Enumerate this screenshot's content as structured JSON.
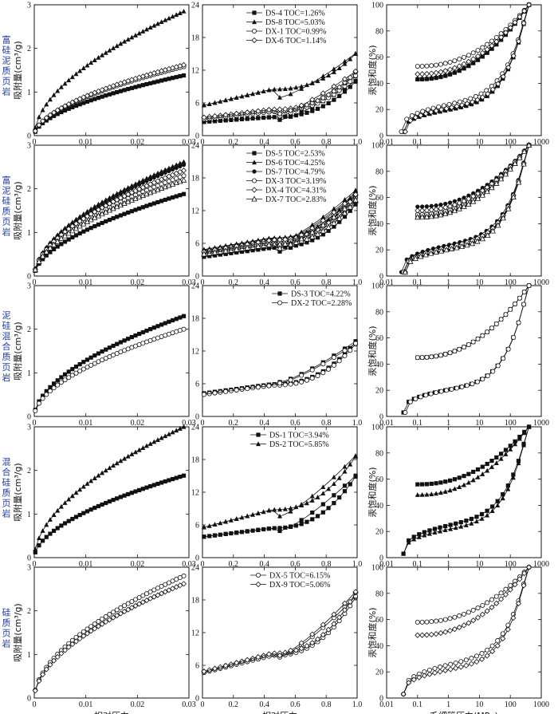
{
  "chart_data": {
    "type": "line",
    "x_titles": [
      "相对压力",
      "相对压力",
      "毛细管压力(MPa)"
    ],
    "col1": {
      "ylabel": "吸附量(cm³/g)",
      "xlim": [
        0,
        0.03
      ],
      "ylim": [
        0,
        3
      ],
      "xticks": [
        "0",
        "0.01",
        "0.02",
        "0.03"
      ],
      "yticks": [
        "0",
        "1",
        "2",
        "3"
      ]
    },
    "col2": {
      "xlim": [
        0,
        1
      ],
      "ylim": [
        0,
        24
      ],
      "xticks": [
        "0",
        "0.2",
        "0.4",
        "0.6",
        "0.8",
        "1.0"
      ],
      "yticks": [
        "0",
        "6",
        "12",
        "18",
        "24"
      ]
    },
    "col3": {
      "ylabel": "汞饱和度(%)",
      "xscale": "log",
      "xlim": [
        0.01,
        1000
      ],
      "ylim": [
        0,
        100
      ],
      "xticks": [
        "0.01",
        "0.1",
        "1",
        "10",
        "100",
        "1000"
      ],
      "yticks": [
        "0",
        "20",
        "40",
        "60",
        "80",
        "100"
      ]
    },
    "rows": [
      {
        "label": "富硅泥质页岩",
        "legend_pos": "top-left",
        "series": [
          {
            "name": "DS-4 TOC=1.26%",
            "marker": "square",
            "ads1": 1.38,
            "s2": [
              2.5,
              10.2,
              2.9,
              3.4
            ],
            "s3": [
              0.035,
              43,
              70
            ]
          },
          {
            "name": "DS-8 TOC=5.03%",
            "marker": "triangle",
            "ads1": 2.85,
            "s2": [
              5.5,
              15.3,
              7.0,
              8.5
            ],
            "s3": [
              0.035,
              44,
              80
            ]
          },
          {
            "name": "DX-1 TOC=0.99%",
            "marker": "circle",
            "ads1": 1.58,
            "s2": [
              3.0,
              11.2,
              3.6,
              4.4
            ],
            "s3": [
              0.03,
              53,
              120
            ]
          },
          {
            "name": "DX-6 TOC=1.14%",
            "marker": "diamond",
            "ads1": 1.62,
            "s2": [
              3.3,
              12.0,
              4.0,
              4.8
            ],
            "s3": [
              0.04,
              47,
              90
            ]
          }
        ]
      },
      {
        "label": "富泥硅质页岩",
        "legend_pos": "top-left",
        "series": [
          {
            "name": "DS-5 TOC=2.53%",
            "marker": "square",
            "ads1": 1.88,
            "s2": [
              3.5,
              13.5,
              4.5,
              5.2
            ],
            "s3": [
              0.035,
              45,
              60
            ]
          },
          {
            "name": "DS-6 TOC=4.25%",
            "marker": "triangle",
            "ads1": 2.62,
            "s2": [
              4.8,
              16.0,
              6.2,
              7.0
            ],
            "s3": [
              0.035,
              48,
              70
            ]
          },
          {
            "name": "DS-7 TOC=4.79%",
            "marker": "circle-filled",
            "ads1": 2.55,
            "s2": [
              4.6,
              15.5,
              6.0,
              6.8
            ],
            "s3": [
              0.03,
              53,
              90
            ]
          },
          {
            "name": "DX-3 TOC=3.19%",
            "marker": "circle",
            "ads1": 2.3,
            "s2": [
              4.2,
              14.8,
              5.4,
              6.2
            ],
            "s3": [
              0.035,
              47,
              100
            ]
          },
          {
            "name": "DX-4 TOC=4.31%",
            "marker": "diamond",
            "ads1": 2.42,
            "s2": [
              4.4,
              15.2,
              5.7,
              6.6
            ],
            "s3": [
              0.04,
              50,
              80
            ]
          },
          {
            "name": "DX-7 TOC=2.83%",
            "marker": "triangle-open",
            "ads1": 2.2,
            "s2": [
              4.0,
              14.2,
              5.1,
              5.8
            ],
            "s3": [
              0.04,
              45,
              120
            ]
          }
        ]
      },
      {
        "label": "泥硅混合质页岩",
        "legend_pos": "top-right",
        "series": [
          {
            "name": "DS-3 TOC=4.22%",
            "marker": "square",
            "ads1": 2.3,
            "s2": [
              4.2,
              14.0,
              6.3,
              5.9
            ],
            "s3": [
              0.035,
              45,
              100
            ]
          },
          {
            "name": "DX-2 TOC=2.28%",
            "marker": "circle",
            "ads1": 2.0,
            "s2": [
              4.0,
              13.6,
              6.1,
              5.7
            ],
            "s3": [
              0.04,
              45,
              150
            ]
          }
        ]
      },
      {
        "label": "混合硅质页岩",
        "legend_pos": "top-center",
        "series": [
          {
            "name": "DS-1 TOC=3.94%",
            "marker": "square",
            "ads1": 1.88,
            "s2": [
              3.8,
              15.3,
              4.9,
              5.4
            ],
            "s3": [
              0.035,
              56,
              130
            ]
          },
          {
            "name": "DS-2 TOC=5.85%",
            "marker": "triangle",
            "ads1": 3.0,
            "s2": [
              5.5,
              19.0,
              7.6,
              8.8
            ],
            "s3": [
              0.035,
              48,
              90
            ]
          }
        ]
      },
      {
        "label": "硅质页岩",
        "legend_pos": "top-center",
        "series": [
          {
            "name": "DX-5 TOC=6.15%",
            "marker": "circle",
            "ads1": 2.8,
            "s2": [
              4.6,
              19.0,
              7.5,
              7.8
            ],
            "s3": [
              0.035,
              58,
              150
            ]
          },
          {
            "name": "DX-9 TOC=5.06%",
            "marker": "diamond",
            "ads1": 2.62,
            "s2": [
              4.8,
              19.8,
              7.8,
              8.2
            ],
            "s3": [
              0.035,
              48,
              120
            ]
          }
        ]
      }
    ]
  }
}
